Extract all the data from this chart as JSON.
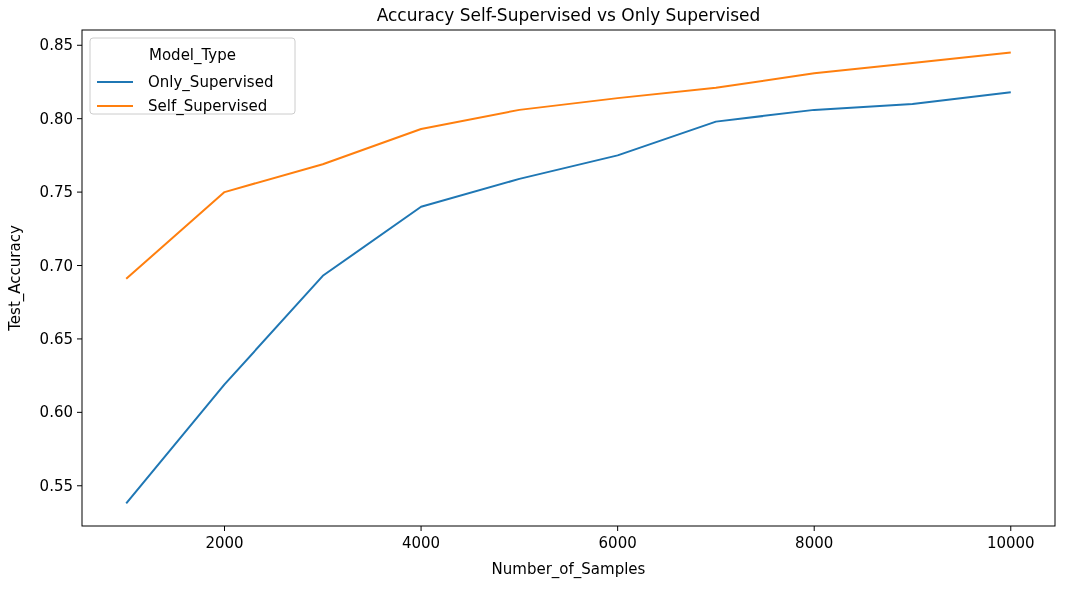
{
  "chart_data": {
    "type": "line",
    "title": "Accuracy Self-Supervised vs Only Supervised",
    "xlabel": "Number_of_Samples",
    "ylabel": "Test_Accuracy",
    "legend_title": "Model_Type",
    "legend": "top left",
    "grid": false,
    "x": [
      1000,
      2000,
      3000,
      4000,
      5000,
      6000,
      7000,
      8000,
      9000,
      10000
    ],
    "xlim": [
      550,
      10450
    ],
    "xticks": [
      2000,
      4000,
      6000,
      8000,
      10000
    ],
    "ylim": [
      0.5226,
      0.8604
    ],
    "yticks": [
      {
        "value": 0.55,
        "label": "0.55"
      },
      {
        "value": 0.6,
        "label": "0.60"
      },
      {
        "value": 0.65,
        "label": "0.65"
      },
      {
        "value": 0.7,
        "label": "0.70"
      },
      {
        "value": 0.75,
        "label": "0.75"
      },
      {
        "value": 0.8,
        "label": "0.80"
      },
      {
        "value": 0.85,
        "label": "0.85"
      }
    ],
    "series": [
      {
        "name": "Only_Supervised",
        "color": "#1f77b4",
        "values": [
          0.538,
          0.619,
          0.693,
          0.74,
          0.759,
          0.775,
          0.798,
          0.806,
          0.81,
          0.818
        ]
      },
      {
        "name": "Self_Supervised",
        "color": "#ff7f0e",
        "values": [
          0.691,
          0.75,
          0.769,
          0.793,
          0.806,
          0.814,
          0.821,
          0.831,
          0.838,
          0.845
        ]
      }
    ]
  }
}
